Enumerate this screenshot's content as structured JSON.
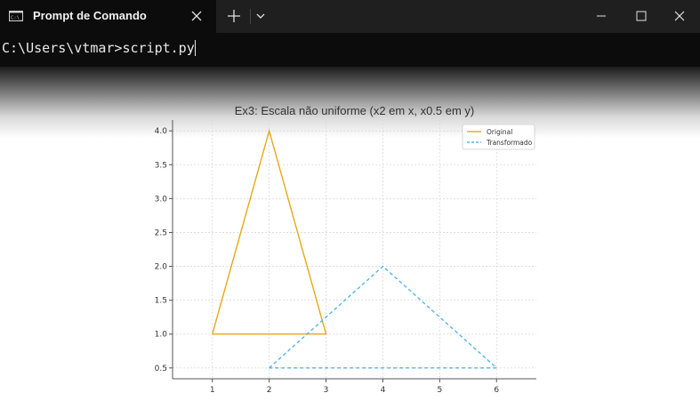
{
  "window": {
    "tab_title": "Prompt de Comando"
  },
  "terminal": {
    "prompt_line": "C:\\Users\\vtmar>script.py"
  },
  "chart_data": {
    "type": "line",
    "title": "Ex3: Escala não uniforme (x2 em x, x0.5 em y)",
    "xlabel": "",
    "ylabel": "",
    "xlim": [
      0.3,
      6.7
    ],
    "ylim": [
      0.34,
      4.16
    ],
    "x_ticks": [
      1,
      2,
      3,
      4,
      5,
      6
    ],
    "y_ticks": [
      0.5,
      1.0,
      1.5,
      2.0,
      2.5,
      3.0,
      3.5,
      4.0
    ],
    "y_tick_labels": [
      "0.5",
      "1.0",
      "1.5",
      "2.0",
      "2.5",
      "3.0",
      "3.5",
      "4.0"
    ],
    "grid": true,
    "legend_position": "top-right",
    "series": [
      {
        "name": "Original",
        "color": "#e6a817",
        "style": "solid",
        "x": [
          1,
          2,
          3,
          1
        ],
        "y": [
          1,
          4,
          1,
          1
        ]
      },
      {
        "name": "Transformado",
        "color": "#56b4e9",
        "style": "dashed",
        "x": [
          2,
          4,
          6,
          2
        ],
        "y": [
          0.5,
          2,
          0.5,
          0.5
        ]
      }
    ]
  }
}
